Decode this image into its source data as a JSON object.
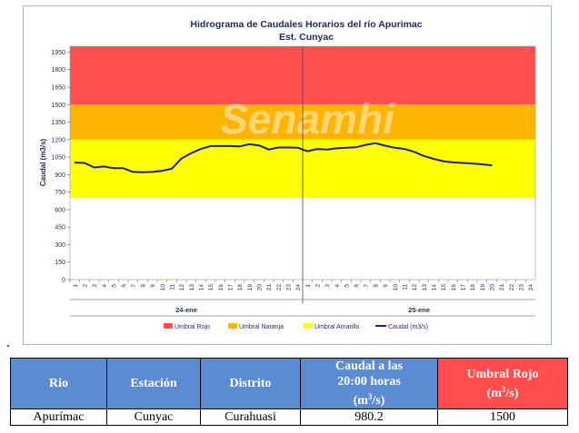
{
  "chart_data": {
    "type": "line",
    "title": "Hidrograma de Caudales Horarios del río Apurimac",
    "subtitle": "Est. Cunyac",
    "watermark": "Senamhi",
    "ylabel": "Caudal  (m3/s)",
    "ylim": [
      0,
      2000
    ],
    "yticks": [
      0,
      150,
      300,
      450,
      600,
      750,
      900,
      1050,
      1200,
      1350,
      1500,
      1650,
      1800,
      1950
    ],
    "x_tick_labels": [
      "1",
      "2",
      "3",
      "4",
      "5",
      "6",
      "7",
      "8",
      "9",
      "10",
      "11",
      "12",
      "13",
      "14",
      "15",
      "16",
      "17",
      "18",
      "19",
      "20",
      "21",
      "22",
      "23",
      "24",
      "1",
      "2",
      "3",
      "4",
      "5",
      "6",
      "7",
      "8",
      "9",
      "10",
      "11",
      "12",
      "13",
      "14",
      "15",
      "16",
      "17",
      "18",
      "19",
      "20",
      "21",
      "22",
      "23",
      "24"
    ],
    "day_labels": [
      "24-ene",
      "25-ene"
    ],
    "bands": [
      {
        "name": "Umbral Rojo",
        "from": 1500,
        "to": 2000,
        "color": "#ff5050"
      },
      {
        "name": "Umbral Naranja",
        "from": 1200,
        "to": 1500,
        "color": "#ffb400"
      },
      {
        "name": "Umbral Amarillo",
        "from": 700,
        "to": 1200,
        "color": "#ffff00"
      }
    ],
    "series": [
      {
        "name": "Caudal (m3/s)",
        "color": "#1e1e96",
        "x": [
          1,
          2,
          3,
          4,
          5,
          6,
          7,
          8,
          9,
          10,
          11,
          12,
          13,
          14,
          15,
          16,
          17,
          18,
          19,
          20,
          21,
          22,
          23,
          24,
          25,
          26,
          27,
          28,
          29,
          30,
          31,
          32,
          33,
          34,
          35,
          36,
          37,
          38,
          39,
          40,
          41,
          42,
          43,
          44
        ],
        "values": [
          1003,
          1000,
          961,
          970,
          955,
          955,
          923,
          920,
          923,
          932,
          950,
          1038,
          1083,
          1120,
          1145,
          1145,
          1145,
          1142,
          1160,
          1150,
          1115,
          1132,
          1132,
          1130,
          1100,
          1120,
          1115,
          1125,
          1130,
          1135,
          1155,
          1170,
          1148,
          1130,
          1120,
          1095,
          1060,
          1035,
          1015,
          1005,
          1000,
          995,
          988,
          980
        ]
      }
    ],
    "legend": [
      "Umbral Rojo",
      "Umbral Naranja",
      "Umbral Amarillo",
      "Caudal (m3/s)"
    ],
    "legend_position": "bottom",
    "grid": false
  },
  "table": {
    "headers": [
      {
        "label": "Rio",
        "color": "#5b8bd0"
      },
      {
        "label": "Estación",
        "color": "#5b8bd0"
      },
      {
        "label": "Distrito",
        "color": "#5b8bd0"
      },
      {
        "label": "Caudal a las 20:00 horas (m3/s)",
        "line1": "Caudal a las",
        "line2": "20:00 horas",
        "line3": "(m",
        "line3sup": "3",
        "line3end": "/s)",
        "color": "#5b8bd0"
      },
      {
        "label": "Umbral Rojo (m3/s)",
        "line1": "Umbral Rojo",
        "line2": "(m",
        "line2sup": "3",
        "line2end": "/s)",
        "color": "#ff4d4d"
      }
    ],
    "row": [
      "Apurímac",
      "Cunyac",
      "Curahuasi",
      "980.2",
      "1500"
    ]
  }
}
